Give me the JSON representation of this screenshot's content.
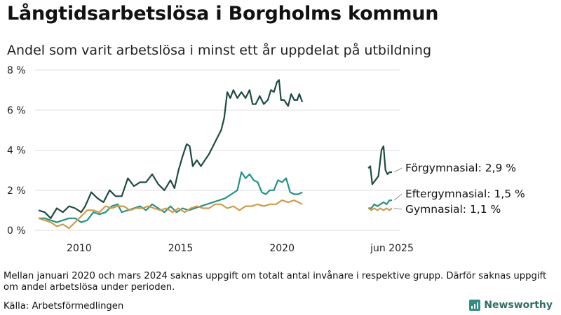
{
  "title": "Långtidsarbetslösa i Borgholms kommun",
  "subtitle": "Andel som varit arbetslösa i minst ett år uppdelat på utbildning",
  "note": "Mellan januari 2020 och mars 2024 saknas uppgift om totalt antal invånare i respektive grupp. Därför saknas uppgift om andel arbetslösa under perioden.",
  "source": "Källa: Arbetsförmedlingen",
  "brand": "Newsworthy",
  "chart_data": {
    "type": "line",
    "title": "Långtidsarbetslösa i Borgholms kommun",
    "subtitle": "Andel som varit arbetslösa i minst ett år uppdelat på utbildning",
    "xlabel": "",
    "ylabel": "",
    "ylim": [
      0,
      8
    ],
    "xlim": [
      2008.0,
      2025.8
    ],
    "y_ticks": [
      0,
      2,
      4,
      6,
      8
    ],
    "y_tick_labels": [
      "0 %",
      "2 %",
      "4 %",
      "6 %",
      "8 %"
    ],
    "x_ticks": [
      2010,
      2015,
      2020,
      2025.42
    ],
    "x_tick_labels": [
      "2010",
      "2015",
      "2020",
      "jun 2025"
    ],
    "grid": "horizontal",
    "legend": "none (direct labels at line ends)",
    "series": [
      {
        "name": "Förgymnasial",
        "end_label": "Förgymnasial: 2,9 %",
        "color": "#1d4b43",
        "segments": [
          [
            [
              2008.0,
              1.0
            ],
            [
              2008.3,
              0.9
            ],
            [
              2008.6,
              0.6
            ],
            [
              2008.9,
              1.1
            ],
            [
              2009.2,
              0.9
            ],
            [
              2009.5,
              1.2
            ],
            [
              2009.8,
              1.1
            ],
            [
              2010.1,
              0.9
            ],
            [
              2010.3,
              1.2
            ],
            [
              2010.6,
              1.9
            ],
            [
              2010.9,
              1.6
            ],
            [
              2011.2,
              1.4
            ],
            [
              2011.5,
              2.0
            ],
            [
              2011.8,
              1.7
            ],
            [
              2012.1,
              1.7
            ],
            [
              2012.4,
              2.6
            ],
            [
              2012.7,
              2.2
            ],
            [
              2013.0,
              2.4
            ],
            [
              2013.3,
              2.4
            ],
            [
              2013.6,
              2.8
            ],
            [
              2013.9,
              2.3
            ],
            [
              2014.2,
              2.0
            ],
            [
              2014.5,
              2.5
            ],
            [
              2014.7,
              2.1
            ],
            [
              2014.9,
              3.0
            ],
            [
              2015.1,
              3.7
            ],
            [
              2015.3,
              4.3
            ],
            [
              2015.45,
              4.2
            ],
            [
              2015.6,
              3.2
            ],
            [
              2015.8,
              3.5
            ],
            [
              2016.0,
              3.2
            ],
            [
              2016.2,
              3.5
            ],
            [
              2016.4,
              3.8
            ],
            [
              2016.6,
              4.2
            ],
            [
              2016.8,
              4.6
            ],
            [
              2017.0,
              5.0
            ],
            [
              2017.15,
              5.6
            ],
            [
              2017.3,
              6.9
            ],
            [
              2017.45,
              6.6
            ],
            [
              2017.6,
              7.0
            ],
            [
              2017.8,
              6.6
            ],
            [
              2018.0,
              6.9
            ],
            [
              2018.2,
              6.6
            ],
            [
              2018.4,
              7.0
            ],
            [
              2018.55,
              6.3
            ],
            [
              2018.7,
              6.3
            ],
            [
              2018.9,
              6.7
            ],
            [
              2019.1,
              6.3
            ],
            [
              2019.3,
              6.5
            ],
            [
              2019.45,
              7.0
            ],
            [
              2019.6,
              6.9
            ],
            [
              2019.75,
              7.4
            ],
            [
              2019.85,
              7.5
            ],
            [
              2019.95,
              6.5
            ],
            [
              2020.1,
              6.5
            ],
            [
              2020.3,
              6.2
            ],
            [
              2020.45,
              6.8
            ],
            [
              2020.6,
              6.5
            ],
            [
              2020.75,
              6.5
            ],
            [
              2020.85,
              6.8
            ],
            [
              2021.0,
              6.4
            ]
          ],
          [
            [
              2024.25,
              3.1
            ],
            [
              2024.35,
              3.2
            ],
            [
              2024.45,
              2.3
            ],
            [
              2024.6,
              2.5
            ],
            [
              2024.75,
              2.7
            ],
            [
              2024.9,
              4.0
            ],
            [
              2025.0,
              4.2
            ],
            [
              2025.1,
              3.0
            ],
            [
              2025.2,
              2.8
            ],
            [
              2025.3,
              2.9
            ],
            [
              2025.42,
              2.9
            ]
          ]
        ]
      },
      {
        "name": "Eftergymnasial",
        "end_label": "Eftergymnasial: 1,5 %",
        "color": "#1f9487",
        "segments": [
          [
            [
              2008.0,
              0.6
            ],
            [
              2008.3,
              0.6
            ],
            [
              2008.6,
              0.5
            ],
            [
              2008.9,
              0.4
            ],
            [
              2009.2,
              0.5
            ],
            [
              2009.5,
              0.6
            ],
            [
              2009.8,
              0.6
            ],
            [
              2010.1,
              0.4
            ],
            [
              2010.4,
              0.5
            ],
            [
              2010.7,
              0.9
            ],
            [
              2011.0,
              0.8
            ],
            [
              2011.3,
              0.9
            ],
            [
              2011.6,
              1.2
            ],
            [
              2011.9,
              1.3
            ],
            [
              2012.1,
              0.9
            ],
            [
              2012.4,
              1.0
            ],
            [
              2012.7,
              1.1
            ],
            [
              2013.0,
              1.2
            ],
            [
              2013.3,
              1.0
            ],
            [
              2013.6,
              1.3
            ],
            [
              2013.9,
              1.1
            ],
            [
              2014.2,
              0.9
            ],
            [
              2014.5,
              1.2
            ],
            [
              2014.8,
              0.9
            ],
            [
              2015.1,
              1.1
            ],
            [
              2015.4,
              1.0
            ],
            [
              2015.7,
              1.1
            ],
            [
              2016.0,
              1.2
            ],
            [
              2016.3,
              1.3
            ],
            [
              2016.6,
              1.4
            ],
            [
              2016.9,
              1.5
            ],
            [
              2017.2,
              1.6
            ],
            [
              2017.5,
              1.8
            ],
            [
              2017.8,
              2.0
            ],
            [
              2018.0,
              2.9
            ],
            [
              2018.2,
              2.6
            ],
            [
              2018.4,
              2.8
            ],
            [
              2018.6,
              2.5
            ],
            [
              2018.8,
              2.4
            ],
            [
              2019.0,
              1.9
            ],
            [
              2019.2,
              1.8
            ],
            [
              2019.4,
              2.0
            ],
            [
              2019.6,
              2.0
            ],
            [
              2019.8,
              2.5
            ],
            [
              2020.0,
              2.4
            ],
            [
              2020.2,
              2.6
            ],
            [
              2020.4,
              1.9
            ],
            [
              2020.6,
              1.8
            ],
            [
              2020.8,
              1.8
            ],
            [
              2021.0,
              1.9
            ]
          ],
          [
            [
              2024.25,
              1.1
            ],
            [
              2024.4,
              1.1
            ],
            [
              2024.55,
              1.3
            ],
            [
              2024.7,
              1.2
            ],
            [
              2024.85,
              1.3
            ],
            [
              2025.0,
              1.4
            ],
            [
              2025.15,
              1.3
            ],
            [
              2025.3,
              1.5
            ],
            [
              2025.42,
              1.5
            ]
          ]
        ]
      },
      {
        "name": "Gymnasial",
        "end_label": "Gymnasial: 1,1 %",
        "color": "#d29a45",
        "segments": [
          [
            [
              2008.0,
              0.6
            ],
            [
              2008.3,
              0.5
            ],
            [
              2008.6,
              0.4
            ],
            [
              2008.9,
              0.2
            ],
            [
              2009.2,
              0.3
            ],
            [
              2009.5,
              0.1
            ],
            [
              2009.8,
              0.4
            ],
            [
              2010.1,
              0.7
            ],
            [
              2010.4,
              1.0
            ],
            [
              2010.7,
              1.0
            ],
            [
              2011.0,
              0.9
            ],
            [
              2011.3,
              1.2
            ],
            [
              2011.6,
              1.1
            ],
            [
              2011.9,
              1.2
            ],
            [
              2012.2,
              1.2
            ],
            [
              2012.5,
              1.0
            ],
            [
              2012.8,
              1.1
            ],
            [
              2013.1,
              1.1
            ],
            [
              2013.4,
              1.2
            ],
            [
              2013.7,
              1.1
            ],
            [
              2014.0,
              1.0
            ],
            [
              2014.3,
              1.1
            ],
            [
              2014.6,
              0.9
            ],
            [
              2014.9,
              1.1
            ],
            [
              2015.2,
              0.9
            ],
            [
              2015.5,
              1.1
            ],
            [
              2015.8,
              1.2
            ],
            [
              2016.1,
              1.1
            ],
            [
              2016.4,
              1.1
            ],
            [
              2016.7,
              1.3
            ],
            [
              2017.0,
              1.3
            ],
            [
              2017.3,
              1.1
            ],
            [
              2017.6,
              1.2
            ],
            [
              2017.9,
              1.0
            ],
            [
              2018.2,
              1.2
            ],
            [
              2018.5,
              1.2
            ],
            [
              2018.8,
              1.3
            ],
            [
              2019.1,
              1.2
            ],
            [
              2019.4,
              1.3
            ],
            [
              2019.7,
              1.3
            ],
            [
              2020.0,
              1.5
            ],
            [
              2020.3,
              1.4
            ],
            [
              2020.6,
              1.5
            ],
            [
              2020.8,
              1.4
            ],
            [
              2021.0,
              1.3
            ]
          ],
          [
            [
              2024.25,
              1.1
            ],
            [
              2024.4,
              1.0
            ],
            [
              2024.55,
              1.1
            ],
            [
              2024.7,
              1.0
            ],
            [
              2024.85,
              1.1
            ],
            [
              2025.0,
              1.0
            ],
            [
              2025.15,
              1.1
            ],
            [
              2025.3,
              1.0
            ],
            [
              2025.42,
              1.1
            ]
          ]
        ]
      }
    ]
  }
}
